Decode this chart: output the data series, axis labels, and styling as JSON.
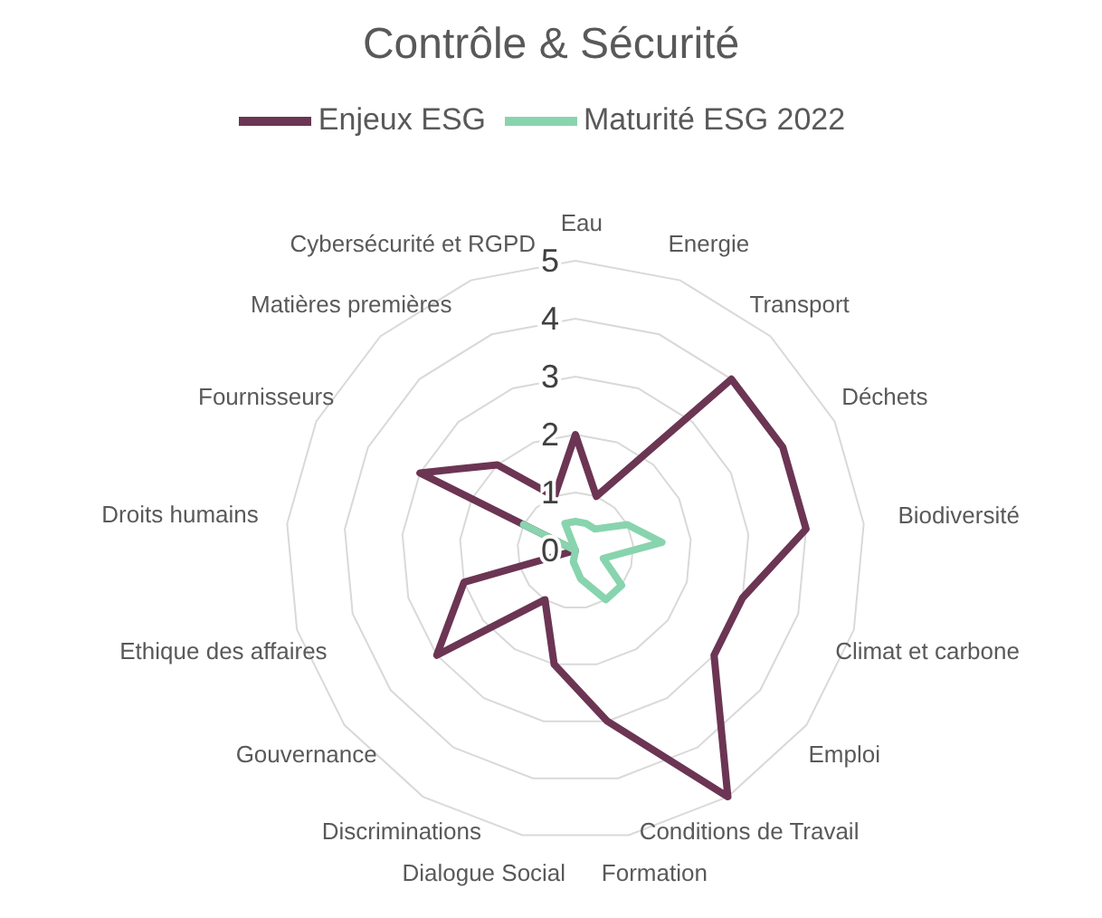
{
  "chart_data": {
    "type": "radar",
    "title": "Contrôle & Sécurité",
    "categories": [
      "Eau",
      "Energie",
      "Transport",
      "Déchets",
      "Biodiversité",
      "Climat et carbone",
      "Emploi",
      "Conditions de Travail",
      "Formation",
      "Dialogue Social",
      "Discriminations",
      "Gouvernance",
      "Ethique des affaires",
      "Droits humains",
      "Fournisseurs",
      "Matières premières",
      "Cybersécurité et RGPD"
    ],
    "series": [
      {
        "name": "Enjeux  ESG",
        "color": "#6b3553",
        "values": [
          2,
          1,
          4,
          4,
          4,
          3,
          3,
          5,
          3,
          2,
          1,
          3,
          2,
          0,
          3,
          2,
          1
        ]
      },
      {
        "name": "Maturité ESG 2022",
        "color": "#88d4ae",
        "values": [
          0.5,
          0.5,
          0.5,
          1,
          1.5,
          0.5,
          1,
          1,
          0.5,
          0.2,
          0,
          0,
          0,
          0,
          1,
          0,
          0.5
        ]
      }
    ],
    "ylim": [
      0,
      5
    ],
    "yticks": [
      0,
      1,
      2,
      3,
      4,
      5
    ],
    "grid": true,
    "legend": "top",
    "marker": "none",
    "line_style": "solid"
  }
}
